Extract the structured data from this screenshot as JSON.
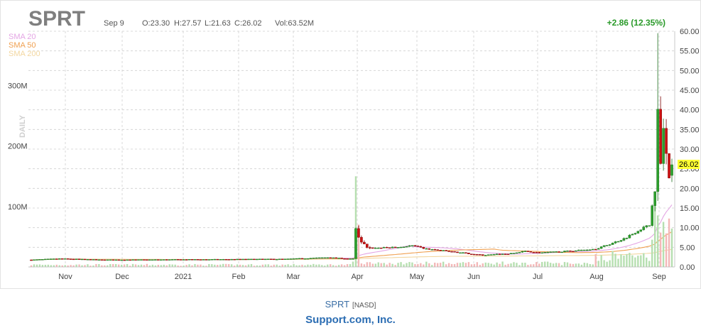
{
  "header": {
    "ticker": "SPRT",
    "date": "Sep 9",
    "open": "O:23.30",
    "high": "H:27.57",
    "low": "L:21.63",
    "close": "C:26.02",
    "volume": "Vol:63.52M",
    "change": "+2.86 (12.35%)"
  },
  "legend": [
    {
      "label": "SMA 20",
      "color": "#e4a5e4"
    },
    {
      "label": "SMA 50",
      "color": "#f0a050"
    },
    {
      "label": "SMA 200",
      "color": "#f3d7a0"
    }
  ],
  "period_label": "DAILY",
  "last_price_label": "26.02",
  "footer": {
    "ticker": "SPRT",
    "exchange": "[NASD]",
    "company": "Support.com, Inc."
  },
  "colors": {
    "up": "#2ca02c",
    "down": "#cc1111",
    "grid": "#cfcfcf",
    "highlight": "#ffff33"
  },
  "chart_data": {
    "type": "candlestick",
    "x_tick_labels": [
      "Nov",
      "Dec",
      "2021",
      "Feb",
      "Mar",
      "Apr",
      "May",
      "Jun",
      "Jul",
      "Aug",
      "Sep"
    ],
    "price_axis": {
      "min": 0,
      "max": 60,
      "ticks": [
        "0.00",
        "5.00",
        "10.00",
        "15.00",
        "20.00",
        "25.00",
        "30.00",
        "35.00",
        "40.00",
        "45.00",
        "50.00",
        "55.00",
        "60.00"
      ]
    },
    "volume_axis": {
      "ticks": [
        "100M",
        "200M",
        "300M"
      ],
      "max": 390
    },
    "last_bar": {
      "date": "Sep 9",
      "open": 23.3,
      "high": 27.57,
      "low": 21.63,
      "close": 26.02,
      "volume_m": 63.52
    }
  }
}
